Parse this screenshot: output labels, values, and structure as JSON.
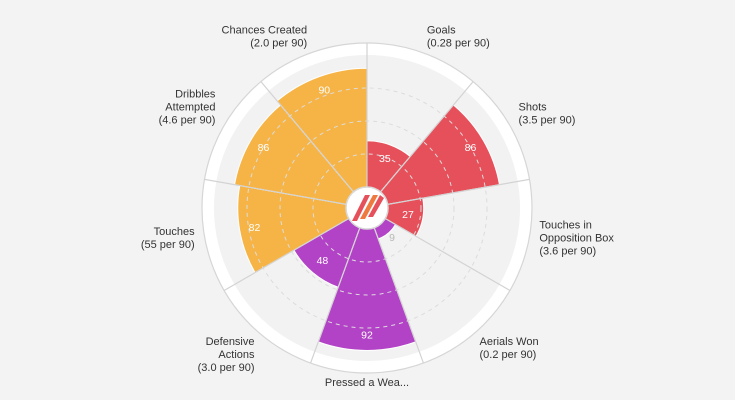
{
  "chart_data": {
    "type": "polar-area",
    "range": [
      0,
      100
    ],
    "colors": {
      "attacking": "#e6505b",
      "possession": "#f6b446",
      "defending": "#b243c6",
      "value_text": "#ffffff",
      "small_value_text": "#b8b8b8"
    },
    "categories": [
      {
        "label_lines": [
          "Goals",
          "(0.28 per 90)"
        ],
        "value": 35,
        "group": "attacking"
      },
      {
        "label_lines": [
          "Shots",
          "(3.5 per 90)"
        ],
        "value": 86,
        "group": "attacking"
      },
      {
        "label_lines": [
          "Touches in",
          "Opposition Box",
          "(3.6 per 90)"
        ],
        "value": 27,
        "group": "attacking"
      },
      {
        "label_lines": [
          "Aerials Won",
          "(0.2 per 90)"
        ],
        "value": 9,
        "group": "defending"
      },
      {
        "label_lines": [
          "Pressed a Wea..."
        ],
        "value": 92,
        "group": "defending"
      },
      {
        "label_lines": [
          "Defensive",
          "Actions",
          "(3.0 per 90)"
        ],
        "value": 48,
        "group": "defending"
      },
      {
        "label_lines": [
          "Touches",
          "(55 per 90)"
        ],
        "value": 82,
        "group": "possession"
      },
      {
        "label_lines": [
          "Dribbles",
          "Attempted",
          "(4.6 per 90)"
        ],
        "value": 86,
        "group": "possession"
      },
      {
        "label_lines": [
          "Chances Created",
          "(2.0 per 90)"
        ],
        "value": 90,
        "group": "possession"
      }
    ],
    "logo": "opta-style-logo"
  }
}
